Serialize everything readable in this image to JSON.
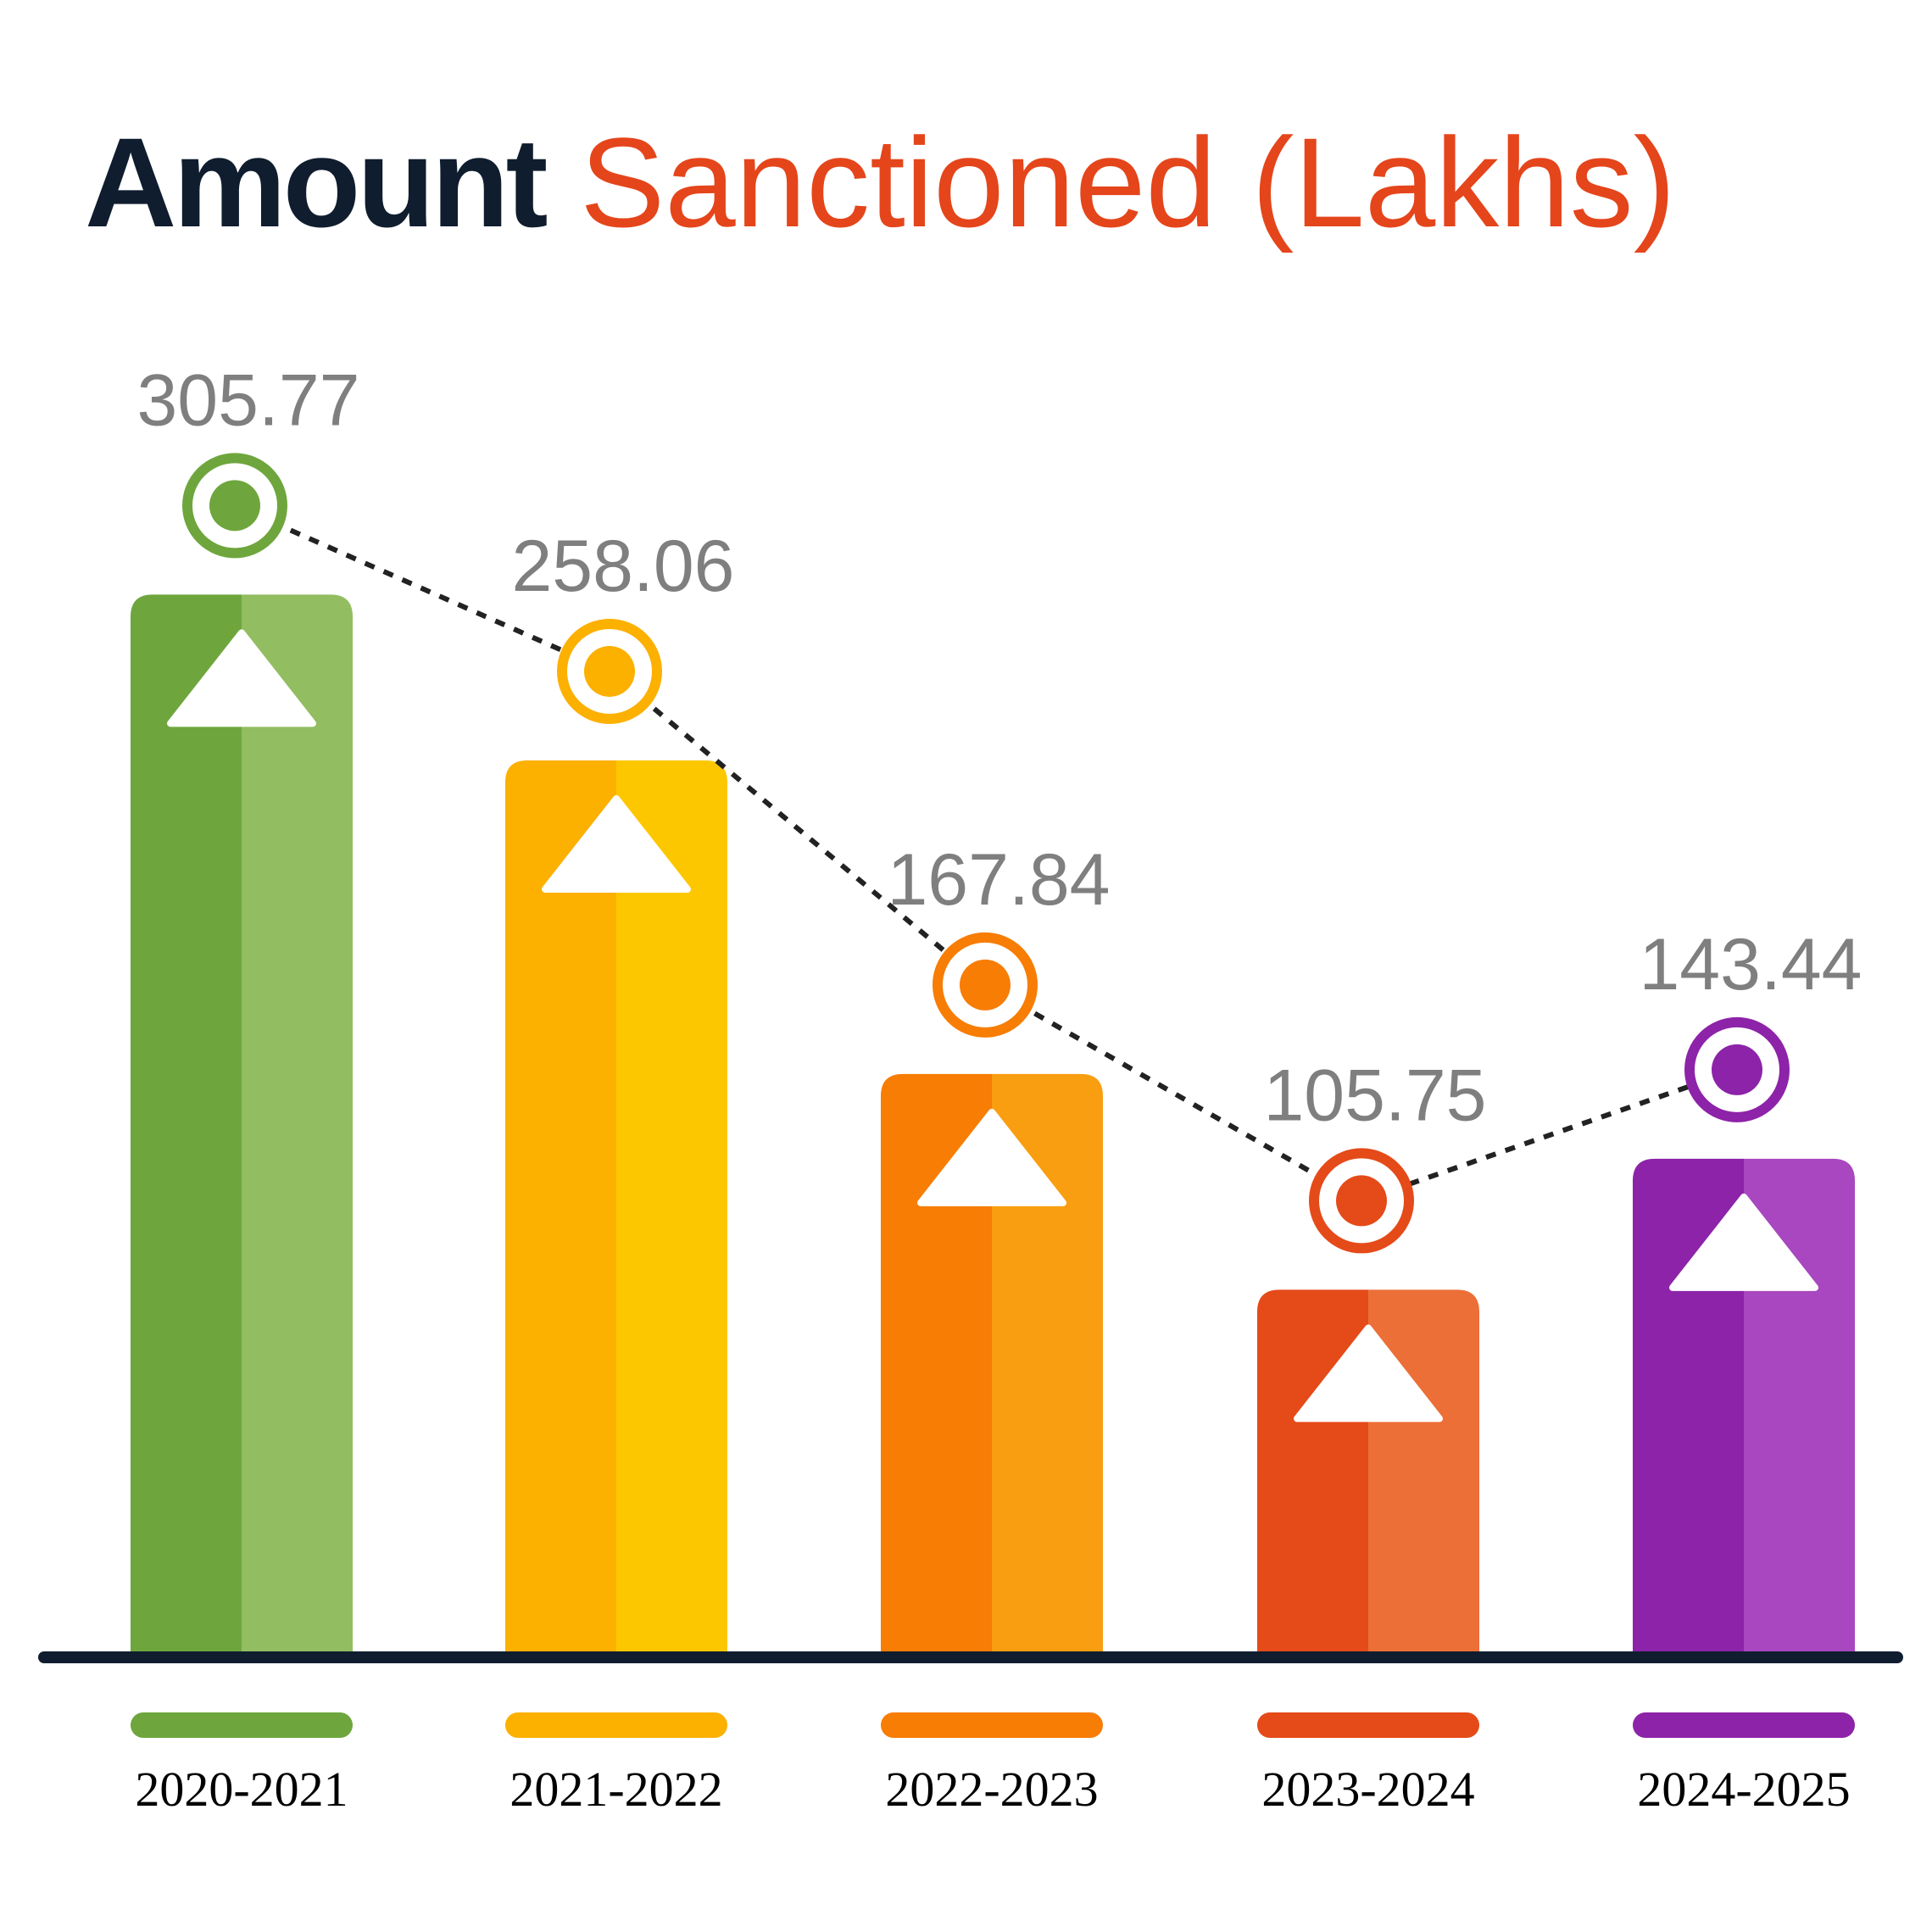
{
  "title": {
    "bold": "Amount",
    "rest": "Sanctioned (Lakhs)"
  },
  "chart_data": {
    "type": "bar",
    "categories": [
      "2020-2021",
      "2021-2022",
      "2022-2023",
      "2023-2024",
      "2024-2025"
    ],
    "values": [
      305.77,
      258.06,
      167.84,
      105.75,
      143.44
    ],
    "title": "Amount Sanctioned (Lakhs)",
    "xlabel": "",
    "ylabel": "",
    "grid": false,
    "legend": "bottom",
    "colors": [
      {
        "dark": "#6ea63d",
        "light": "#92bd61"
      },
      {
        "dark": "#fcb000",
        "light": "#fdc700"
      },
      {
        "dark": "#f77d05",
        "light": "#f99e10"
      },
      {
        "dark": "#e54a19",
        "light": "#ec6f37"
      },
      {
        "dark": "#8d23a8",
        "light": "#a847c0"
      }
    ],
    "axis_color": "#0f1d2e",
    "connector": "dotted-line"
  }
}
